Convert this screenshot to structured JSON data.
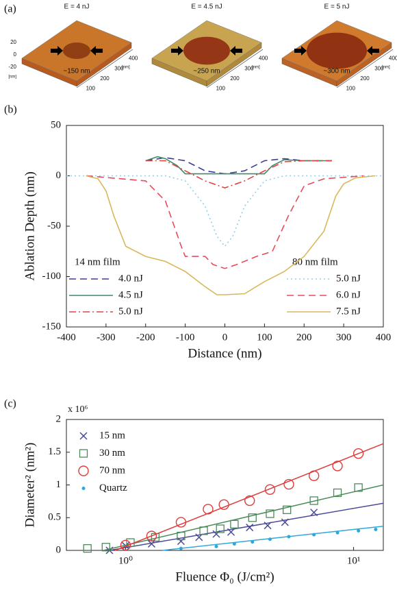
{
  "figure": {
    "panel_a": {
      "label": "(a)",
      "images": [
        {
          "title": "E = 4 nJ",
          "size_label": "~150 nm"
        },
        {
          "title": "E = 4.5 nJ",
          "size_label": "~250 nm"
        },
        {
          "title": "E = 5 nJ",
          "size_label": "~300 nm"
        }
      ],
      "z_ticks": [
        "20",
        "0",
        "-20"
      ],
      "z_unit": "[nm]",
      "xy_ticks": [
        "100",
        "200",
        "300",
        "400"
      ],
      "xy_unit": "[nm]"
    }
  },
  "chart_data": [
    {
      "type": "line",
      "label": "(b)",
      "xlabel": "Distance (nm)",
      "ylabel": "Ablation Depth (nm)",
      "xlim": [
        -400,
        400
      ],
      "xticks": [
        -400,
        -300,
        -200,
        -100,
        0,
        100,
        200,
        300,
        400
      ],
      "ylim": [
        -150,
        50
      ],
      "yticks": [
        -150,
        -100,
        -50,
        0,
        50
      ],
      "groups": [
        {
          "title": "14 nm film",
          "series": [
            {
              "name": "4.0 nJ",
              "color": "#3b3b9a",
              "dash": "dashed",
              "x": [
                -200,
                -150,
                -100,
                -50,
                0,
                50,
                100,
                150,
                200,
                270
              ],
              "values": [
                15,
                18,
                15,
                5,
                2,
                5,
                15,
                17,
                15,
                15
              ]
            },
            {
              "name": "4.5 nJ",
              "color": "#3f8a6a",
              "dash": "solid",
              "x": [
                -200,
                -170,
                -150,
                -120,
                -100,
                0,
                100,
                120,
                150,
                200,
                270
              ],
              "values": [
                15,
                19,
                17,
                10,
                2,
                2,
                2,
                10,
                16,
                15,
                15
              ]
            },
            {
              "name": "5.0 nJ",
              "color": "#e04040",
              "dash": "dashdot",
              "x": [
                -200,
                -150,
                -100,
                -50,
                0,
                50,
                100,
                150,
                200,
                270
              ],
              "values": [
                15,
                15,
                5,
                -5,
                -12,
                -5,
                5,
                14,
                15,
                15
              ]
            }
          ]
        },
        {
          "title": "80 nm film",
          "series": [
            {
              "name": "5.0 nJ",
              "color": "#8ecfe8",
              "dash": "dotted",
              "x": [
                -400,
                -150,
                -100,
                -50,
                -20,
                0,
                20,
                50,
                100,
                150,
                400
              ],
              "values": [
                0,
                0,
                -5,
                -30,
                -60,
                -70,
                -60,
                -30,
                -5,
                0,
                0
              ]
            },
            {
              "name": "6.0 nJ",
              "color": "#e84a5a",
              "dash": "dashed",
              "x": [
                -350,
                -200,
                -150,
                -110,
                -100,
                -50,
                -30,
                0,
                30,
                80,
                120,
                160,
                200,
                250,
                350
              ],
              "values": [
                0,
                -5,
                -25,
                -70,
                -80,
                -80,
                -88,
                -92,
                -88,
                -80,
                -75,
                -40,
                -10,
                -3,
                0
              ]
            },
            {
              "name": "7.5 nJ",
              "color": "#d9b85a",
              "dash": "solid",
              "x": [
                -350,
                -320,
                -300,
                -280,
                -250,
                -200,
                -150,
                -100,
                -50,
                -20,
                0,
                50,
                100,
                150,
                200,
                250,
                280,
                300,
                330,
                380
              ],
              "values": [
                0,
                -3,
                -15,
                -40,
                -70,
                -80,
                -85,
                -95,
                -110,
                -118,
                -118,
                -117,
                -105,
                -95,
                -80,
                -55,
                -20,
                -8,
                -2,
                0
              ]
            }
          ]
        }
      ]
    },
    {
      "type": "scatter",
      "label": "(c)",
      "xlabel": "Fluence Φ₀ (J/cm²)",
      "ylabel": "Diameter² (nm²)",
      "y_multiplier": "x 10⁶",
      "xscale": "log",
      "xlim": [
        0.55,
        13.5
      ],
      "xticks": [
        {
          "value": 1,
          "label": "10⁰"
        },
        {
          "value": 10,
          "label": "10¹"
        }
      ],
      "ylim": [
        0,
        2
      ],
      "yticks": [
        0,
        0.5,
        1,
        1.5,
        2
      ],
      "series": [
        {
          "name": "15 nm",
          "color": "#4a4a9a",
          "marker": "x",
          "x": [
            0.85,
            1.0,
            1.3,
            1.75,
            2.1,
            2.5,
            2.9,
            3.5,
            4.2,
            5.0,
            6.7
          ],
          "values": [
            0.0,
            0.07,
            0.1,
            0.14,
            0.2,
            0.25,
            0.28,
            0.35,
            0.38,
            0.43,
            0.58
          ],
          "fit": {
            "x": [
              0.85,
              13.5
            ],
            "values": [
              0,
              0.72
            ]
          }
        },
        {
          "name": "30 nm",
          "color": "#4a8a5a",
          "marker": "square",
          "x": [
            0.68,
            0.82,
            1.05,
            1.35,
            1.75,
            2.2,
            2.6,
            3.0,
            3.6,
            4.3,
            5.1,
            6.7,
            8.5,
            10.5
          ],
          "values": [
            0.03,
            0.05,
            0.12,
            0.2,
            0.22,
            0.3,
            0.33,
            0.4,
            0.5,
            0.56,
            0.62,
            0.76,
            0.88,
            0.96
          ],
          "fit": {
            "x": [
              0.8,
              13.5
            ],
            "values": [
              0,
              1.0
            ]
          }
        },
        {
          "name": "70 nm",
          "color": "#e03a3a",
          "marker": "circle",
          "x": [
            1.0,
            1.3,
            1.75,
            2.3,
            2.7,
            3.5,
            4.3,
            5.2,
            6.7,
            8.5,
            10.5
          ],
          "values": [
            0.08,
            0.22,
            0.43,
            0.63,
            0.7,
            0.76,
            0.93,
            1.01,
            1.14,
            1.29,
            1.48
          ],
          "fit": {
            "x": [
              0.9,
              13.5
            ],
            "values": [
              0,
              1.63
            ]
          }
        },
        {
          "name": "Quartz",
          "color": "#2ea8d8",
          "marker": "dot",
          "x": [
            1.75,
            2.5,
            3.0,
            3.6,
            4.3,
            5.2,
            6.7,
            8.5,
            10.5,
            12.5
          ],
          "values": [
            0.03,
            0.06,
            0.1,
            0.13,
            0.17,
            0.21,
            0.24,
            0.27,
            0.3,
            0.32
          ],
          "fit": {
            "x": [
              1.45,
              13.5
            ],
            "values": [
              0,
              0.37
            ]
          }
        }
      ]
    }
  ]
}
